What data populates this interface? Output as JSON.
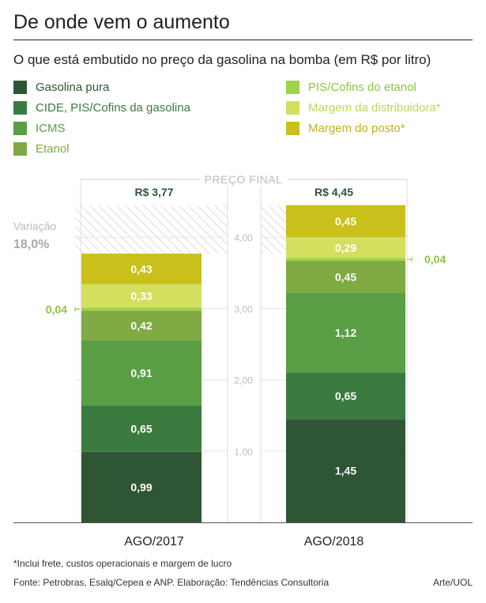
{
  "header": {
    "title": "De onde vem o aumento",
    "subtitle": "O que está embutido no preço da gasolina na bomba (em R$ por litro)"
  },
  "legend": [
    {
      "label": "Gasolina pura",
      "color": "#2f5634"
    },
    {
      "label": "CIDE, PIS/Cofins da gasolina",
      "color": "#3b7a3e"
    },
    {
      "label": "ICMS",
      "color": "#5a9e45"
    },
    {
      "label": "Etanol",
      "color": "#7faa44"
    },
    {
      "label": "PIS/Cofins do etanol",
      "color": "#9fd34a"
    },
    {
      "label": "Margem da distribuidora*",
      "color": "#d3df5e"
    },
    {
      "label": "Margem do posto*",
      "color": "#c9c01c"
    }
  ],
  "labels": {
    "final_price": "PREÇO FINAL",
    "variation_label": "Variação",
    "variation_value": "18,0%"
  },
  "chart_data": {
    "type": "bar",
    "stacked": true,
    "categories": [
      "AGO/2017",
      "AGO/2018"
    ],
    "totals": [
      "R$ 3,77",
      "R$ 4,45"
    ],
    "ylim": [
      0,
      4.45
    ],
    "yticks": [
      {
        "value": 1,
        "label": "1,00"
      },
      {
        "value": 2,
        "label": "2,00"
      },
      {
        "value": 3,
        "label": "3,00"
      },
      {
        "value": 4,
        "label": "4,00"
      }
    ],
    "series": [
      {
        "name": "Gasolina pura",
        "values": [
          0.99,
          1.45
        ],
        "labels": [
          "0,99",
          "1,45"
        ]
      },
      {
        "name": "CIDE, PIS/Cofins da gasolina",
        "values": [
          0.65,
          0.65
        ],
        "labels": [
          "0,65",
          "0,65"
        ]
      },
      {
        "name": "ICMS",
        "values": [
          0.91,
          1.12
        ],
        "labels": [
          "0,91",
          "1,12"
        ]
      },
      {
        "name": "Etanol",
        "values": [
          0.42,
          0.45
        ],
        "labels": [
          "0,42",
          "0,45"
        ]
      },
      {
        "name": "PIS/Cofins do etanol",
        "values": [
          0.04,
          0.04
        ],
        "labels": [
          "0,04",
          "0,04"
        ]
      },
      {
        "name": "Margem da distribuidora*",
        "values": [
          0.33,
          0.29
        ],
        "labels": [
          "0,33",
          "0,29"
        ]
      },
      {
        "name": "Margem do posto*",
        "values": [
          0.43,
          0.45
        ],
        "labels": [
          "0,43",
          "0,45"
        ]
      }
    ]
  },
  "footer": {
    "footnote": "*Inclui frete, custos operacionais e margem de lucro",
    "source": "Fonte: Petrobras, Esalq/Cepea e ANP. Elaboração: Tendências Consultoria",
    "credit": "Arte/UOL"
  }
}
